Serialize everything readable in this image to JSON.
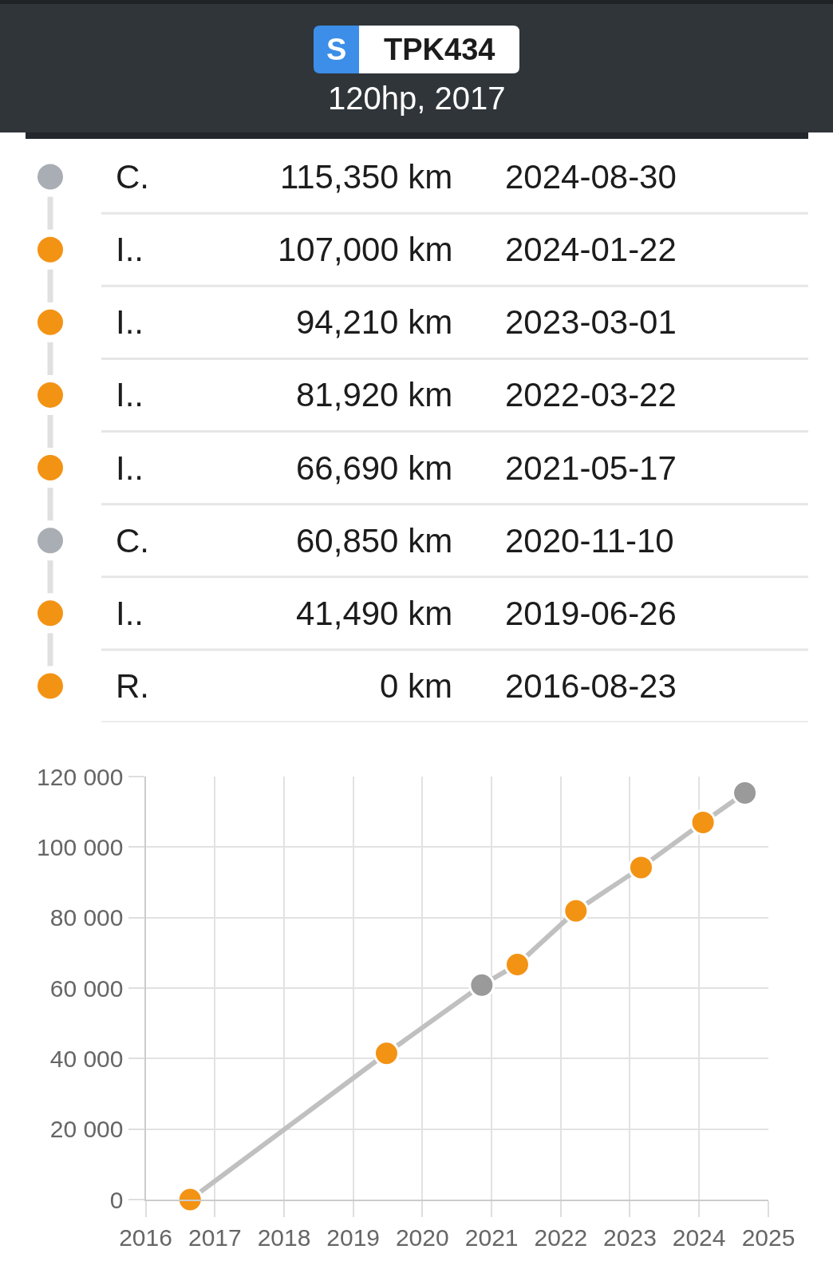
{
  "chart_data": [
    {
      "type": "other",
      "title": "TPK434",
      "subtitle": "120hp, 2017",
      "annotations": [
        "S",
        "2024-08-30",
        "2024-01-22",
        "2023-03-01",
        "2022-03-22",
        "2021-05-17",
        "2020-11-10",
        "2019-06-26",
        "2016-08-23"
      ],
      "categories": [
        "C.",
        "I..",
        "I..",
        "I..",
        "I..",
        "C.",
        "I..",
        "R."
      ],
      "values": [
        115350,
        107000,
        94210,
        81920,
        66690,
        60850,
        41490,
        0
      ],
      "value_labels": [
        "115,350 km",
        "107,000 km",
        "94,210 km",
        "81,920 km",
        "66,690 km",
        "60,850 km",
        "41,490 km",
        "0 km"
      ],
      "colors": [
        "#a9aeb4",
        "#f39314",
        "#f39314",
        "#f39314",
        "#f39314",
        "#a9aeb4",
        "#f39314",
        "#f39314"
      ]
    },
    {
      "type": "line",
      "x": [
        "2016-08-23",
        "2019-06-26",
        "2020-11-10",
        "2021-05-17",
        "2022-03-22",
        "2023-03-01",
        "2024-01-22",
        "2024-08-30"
      ],
      "values": [
        0,
        41490,
        60850,
        66690,
        81920,
        94210,
        107000,
        115350
      ],
      "color": "#c0c0c0",
      "colors": [
        "#f39314",
        "#f39314",
        "#9a9a9a",
        "#f39314",
        "#f39314",
        "#f39314",
        "#f39314",
        "#9a9a9a"
      ],
      "marker": "circle",
      "xlim": [
        "2016",
        "2025"
      ],
      "xticks": [
        "2016",
        "2017",
        "2018",
        "2019",
        "2020",
        "2021",
        "2022",
        "2023",
        "2024",
        "2025"
      ],
      "ylim": [
        0,
        120000
      ],
      "yticks": [
        0,
        {
          "value": 20000,
          "label": "20 000"
        },
        {
          "value": 40000,
          "label": "40 000"
        },
        {
          "value": 60000,
          "label": "60 000"
        },
        {
          "value": 80000,
          "label": "80 000"
        },
        {
          "value": 100000,
          "label": "100 000"
        },
        {
          "value": 120000,
          "label": "120 000"
        }
      ],
      "grid": true
    }
  ]
}
